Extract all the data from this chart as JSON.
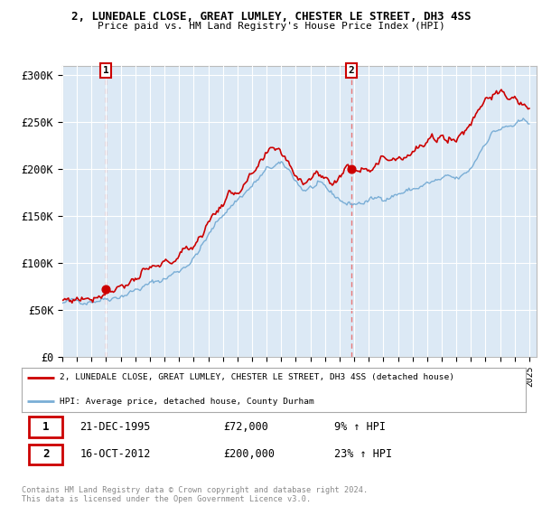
{
  "title1": "2, LUNEDALE CLOSE, GREAT LUMLEY, CHESTER LE STREET, DH3 4SS",
  "title2": "Price paid vs. HM Land Registry's House Price Index (HPI)",
  "legend_line1": "2, LUNEDALE CLOSE, GREAT LUMLEY, CHESTER LE STREET, DH3 4SS (detached house)",
  "legend_line2": "HPI: Average price, detached house, County Durham",
  "annotation1_label": "1",
  "annotation1_date": "21-DEC-1995",
  "annotation1_price": "£72,000",
  "annotation1_hpi": "9% ↑ HPI",
  "annotation1_year": 1995.97,
  "annotation1_value": 72000,
  "annotation2_label": "2",
  "annotation2_date": "16-OCT-2012",
  "annotation2_price": "£200,000",
  "annotation2_hpi": "23% ↑ HPI",
  "annotation2_year": 2012.79,
  "annotation2_value": 200000,
  "ylim": [
    0,
    310000
  ],
  "yticks": [
    0,
    50000,
    100000,
    150000,
    200000,
    250000,
    300000
  ],
  "ytick_labels": [
    "£0",
    "£50K",
    "£100K",
    "£150K",
    "£200K",
    "£250K",
    "£300K"
  ],
  "xmin": 1993,
  "xmax": 2025.5,
  "background_color": "#ffffff",
  "plot_bg_color": "#dce9f5",
  "grid_color": "#ffffff",
  "red_line_color": "#cc0000",
  "blue_line_color": "#7aaed6",
  "dashed_line_color": "#e87777",
  "annotation_box_color": "#cc0000",
  "legend_border_color": "#aaaaaa",
  "copyright_text": "Contains HM Land Registry data © Crown copyright and database right 2024.\nThis data is licensed under the Open Government Licence v3.0.",
  "footer_color": "#888888",
  "hpi_anchors_years": [
    1993.0,
    1994.0,
    1995.0,
    1996.0,
    1997.0,
    1998.0,
    1999.0,
    2000.0,
    2001.0,
    2002.0,
    2003.0,
    2004.0,
    2005.0,
    2006.0,
    2007.0,
    2007.8,
    2008.5,
    2009.5,
    2010.0,
    2010.5,
    2011.0,
    2011.5,
    2012.0,
    2012.5,
    2013.0,
    2013.5,
    2014.0,
    2014.5,
    2015.0,
    2015.5,
    2016.0,
    2016.5,
    2017.0,
    2017.5,
    2018.0,
    2018.5,
    2019.0,
    2019.5,
    2020.0,
    2020.5,
    2021.0,
    2021.5,
    2022.0,
    2022.5,
    2023.0,
    2023.5,
    2024.0,
    2024.5,
    2025.0
  ],
  "hpi_anchors_vals": [
    57000,
    59000,
    61000,
    63000,
    66000,
    71000,
    77000,
    83000,
    92000,
    105000,
    128000,
    152000,
    168000,
    182000,
    198000,
    205000,
    198000,
    178000,
    180000,
    182000,
    178000,
    172000,
    168000,
    163000,
    163000,
    164000,
    166000,
    168000,
    170000,
    172000,
    174000,
    176000,
    178000,
    181000,
    184000,
    186000,
    188000,
    190000,
    188000,
    192000,
    200000,
    215000,
    230000,
    240000,
    243000,
    244000,
    246000,
    248000,
    250000
  ],
  "prop_anchors_years": [
    1993.0,
    1994.0,
    1995.0,
    1995.97,
    1996.5,
    1997.0,
    1998.0,
    1999.0,
    2000.0,
    2001.0,
    2002.0,
    2003.0,
    2004.0,
    2005.0,
    2006.0,
    2007.0,
    2007.8,
    2008.0,
    2008.5,
    2009.0,
    2009.5,
    2010.0,
    2010.5,
    2011.0,
    2011.5,
    2012.0,
    2012.5,
    2012.79,
    2013.0,
    2013.5,
    2014.0,
    2014.5,
    2015.0,
    2015.5,
    2016.0,
    2016.5,
    2017.0,
    2017.5,
    2018.0,
    2018.5,
    2019.0,
    2019.5,
    2020.0,
    2020.5,
    2021.0,
    2021.5,
    2022.0,
    2022.5,
    2023.0,
    2023.5,
    2024.0,
    2024.5,
    2025.0
  ],
  "prop_anchors_vals": [
    60000,
    62000,
    65000,
    72000,
    74000,
    77000,
    83000,
    90000,
    97000,
    107000,
    120000,
    143000,
    165000,
    178000,
    190000,
    210000,
    222000,
    218000,
    208000,
    195000,
    190000,
    194000,
    196000,
    192000,
    185000,
    195000,
    200000,
    200000,
    202000,
    204000,
    206000,
    208000,
    210000,
    213000,
    215000,
    218000,
    220000,
    223000,
    226000,
    230000,
    233000,
    236000,
    233000,
    240000,
    250000,
    265000,
    278000,
    282000,
    278000,
    275000,
    272000,
    268000,
    265000
  ]
}
